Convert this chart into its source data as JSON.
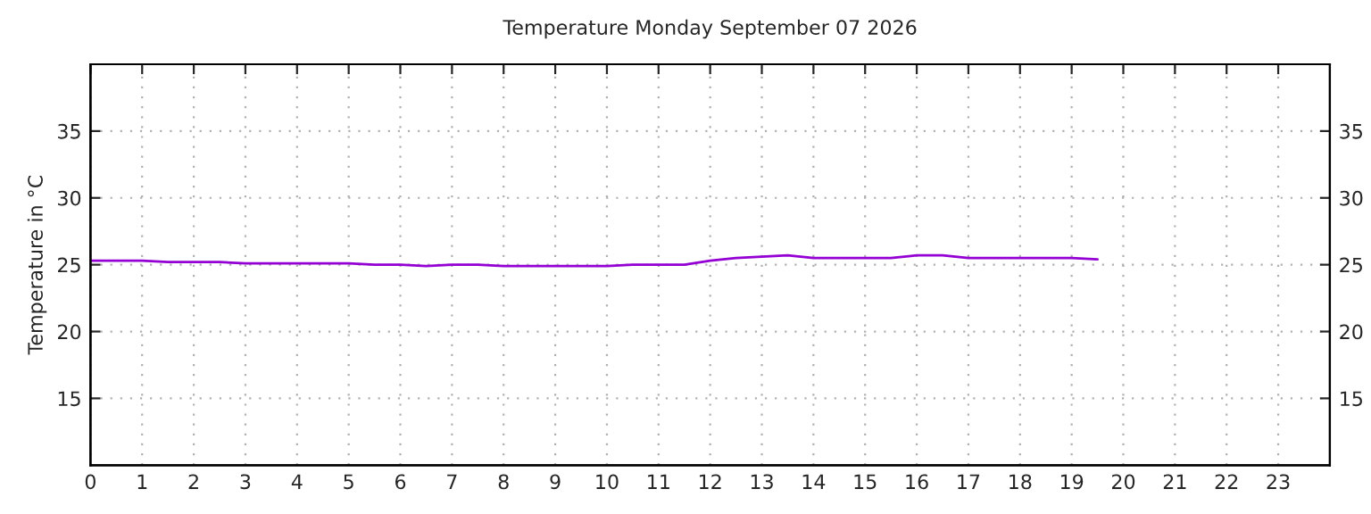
{
  "chart_data": {
    "type": "line",
    "title": "Temperature Monday September 07 2026",
    "ylabel": "Temperature in °C",
    "x": [
      0,
      1,
      1.5,
      2,
      2.5,
      3,
      4,
      5,
      5.5,
      6,
      6.5,
      7,
      7.5,
      8,
      9,
      10,
      10.5,
      11,
      11.5,
      12,
      12.5,
      13,
      13.5,
      14,
      15,
      15.5,
      16,
      16.5,
      17,
      18,
      19,
      19.5
    ],
    "series": [
      {
        "color": "#9400d3",
        "values": [
          25.3,
          25.3,
          25.2,
          25.2,
          25.2,
          25.1,
          25.1,
          25.1,
          25.0,
          25.0,
          24.9,
          25.0,
          25.0,
          24.9,
          24.9,
          24.9,
          25.0,
          25.0,
          25.0,
          25.3,
          25.5,
          25.6,
          25.7,
          25.5,
          25.5,
          25.5,
          25.7,
          25.7,
          25.5,
          25.5,
          25.5,
          25.4
        ]
      }
    ],
    "xlim": [
      0,
      24
    ],
    "xticks": [
      0,
      1,
      2,
      3,
      4,
      5,
      6,
      7,
      8,
      9,
      10,
      11,
      12,
      13,
      14,
      15,
      16,
      17,
      18,
      19,
      20,
      21,
      22,
      23
    ],
    "ylim": [
      10,
      40
    ],
    "yticks": [
      15,
      20,
      25,
      30,
      35
    ],
    "y2lim": [
      10,
      40
    ],
    "y2ticks": [
      15,
      20,
      25,
      30,
      35
    ],
    "grid": true,
    "line_style": "solid"
  }
}
